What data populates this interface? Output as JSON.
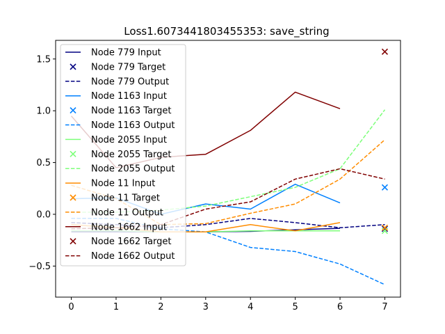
{
  "chart_data": {
    "type": "line",
    "title": "Loss1.6073441803455353: save_string",
    "xlabel": "",
    "ylabel": "",
    "xlim": [
      -0.35,
      7.35
    ],
    "ylim": [
      -0.8,
      1.68
    ],
    "xticks": [
      0,
      1,
      2,
      3,
      4,
      5,
      6,
      7
    ],
    "yticks": [
      -0.5,
      0.0,
      0.5,
      1.0,
      1.5
    ],
    "ytick_labels": [
      "−0.5",
      "0.0",
      "0.5",
      "1.0",
      "1.5"
    ],
    "grid": false,
    "legend_position": "upper-left",
    "series": [
      {
        "node": "Node 779",
        "color": "#000080",
        "input_label": "Node 779 Input",
        "target_label": "Node 779 Target",
        "output_label": "Node 779 Output",
        "input": [
          [
            0,
            -0.17
          ],
          [
            1,
            -0.17
          ],
          [
            2,
            -0.17
          ],
          [
            3,
            -0.17
          ],
          [
            4,
            -0.165
          ],
          [
            5,
            -0.15
          ],
          [
            6,
            -0.135
          ]
        ],
        "target": [
          7,
          -0.14
        ],
        "output": [
          [
            0,
            -0.08
          ],
          [
            1,
            -0.1
          ],
          [
            2,
            -0.13
          ],
          [
            3,
            -0.1
          ],
          [
            4,
            -0.04
          ],
          [
            5,
            -0.08
          ],
          [
            6,
            -0.13
          ],
          [
            7,
            -0.1
          ]
        ]
      },
      {
        "node": "Node 1163",
        "color": "#0080ff",
        "input_label": "Node 1163 Input",
        "target_label": "Node 1163 Target",
        "output_label": "Node 1163 Output",
        "input": [
          [
            0,
            0.15
          ],
          [
            1,
            0.16
          ],
          [
            2,
            0.0
          ],
          [
            3,
            0.1
          ],
          [
            4,
            0.05
          ],
          [
            5,
            0.29
          ],
          [
            6,
            0.11
          ]
        ],
        "target": [
          7,
          0.26
        ],
        "output": [
          [
            0,
            -0.04
          ],
          [
            1,
            -0.04
          ],
          [
            2,
            -0.14
          ],
          [
            3,
            -0.17
          ],
          [
            4,
            -0.32
          ],
          [
            5,
            -0.36
          ],
          [
            6,
            -0.48
          ],
          [
            7,
            -0.68
          ]
        ]
      },
      {
        "node": "Node 2055",
        "color": "#7dff7a",
        "input_label": "Node 2055 Input",
        "target_label": "Node 2055 Target",
        "output_label": "Node 2055 Output",
        "input": [
          [
            0,
            -0.16
          ],
          [
            1,
            -0.16
          ],
          [
            2,
            -0.17
          ],
          [
            3,
            -0.17
          ],
          [
            4,
            -0.16
          ],
          [
            5,
            -0.16
          ],
          [
            6,
            -0.16
          ]
        ],
        "target": [
          7,
          -0.16
        ],
        "output": [
          [
            0,
            0.02
          ],
          [
            1,
            0.02
          ],
          [
            2,
            0.04
          ],
          [
            3,
            0.08
          ],
          [
            4,
            0.17
          ],
          [
            5,
            0.26
          ],
          [
            6,
            0.44
          ],
          [
            7,
            1.01
          ]
        ]
      },
      {
        "node": "Node 11",
        "color": "#ff8c00",
        "input_label": "Node 11 Input",
        "target_label": "Node 11 Target",
        "output_label": "Node 11 Output",
        "input": [
          [
            0,
            -0.1
          ],
          [
            1,
            -0.13
          ],
          [
            2,
            -0.17
          ],
          [
            3,
            -0.17
          ],
          [
            4,
            -0.1
          ],
          [
            5,
            -0.16
          ],
          [
            6,
            -0.08
          ]
        ],
        "target": [
          7,
          -0.13
        ],
        "output": [
          [
            0,
            0.28
          ],
          [
            1,
            0.15
          ],
          [
            2,
            -0.1
          ],
          [
            3,
            -0.09
          ],
          [
            4,
            0.01
          ],
          [
            5,
            0.1
          ],
          [
            6,
            0.34
          ],
          [
            7,
            0.72
          ]
        ]
      },
      {
        "node": "Node 1662",
        "color": "#800000",
        "input_label": "Node 1662 Input",
        "target_label": "Node 1662 Target",
        "output_label": "Node 1662 Output",
        "input": [
          [
            0,
            0.95
          ],
          [
            1,
            0.45
          ],
          [
            2,
            0.55
          ],
          [
            3,
            0.58
          ],
          [
            4,
            0.81
          ],
          [
            5,
            1.18
          ],
          [
            6,
            1.02
          ]
        ],
        "target": [
          7,
          1.57
        ],
        "output": [
          [
            0,
            -0.14
          ],
          [
            1,
            -0.13
          ],
          [
            2,
            -0.1
          ],
          [
            3,
            0.05
          ],
          [
            4,
            0.12
          ],
          [
            5,
            0.34
          ],
          [
            6,
            0.44
          ],
          [
            7,
            0.34
          ]
        ]
      }
    ]
  }
}
